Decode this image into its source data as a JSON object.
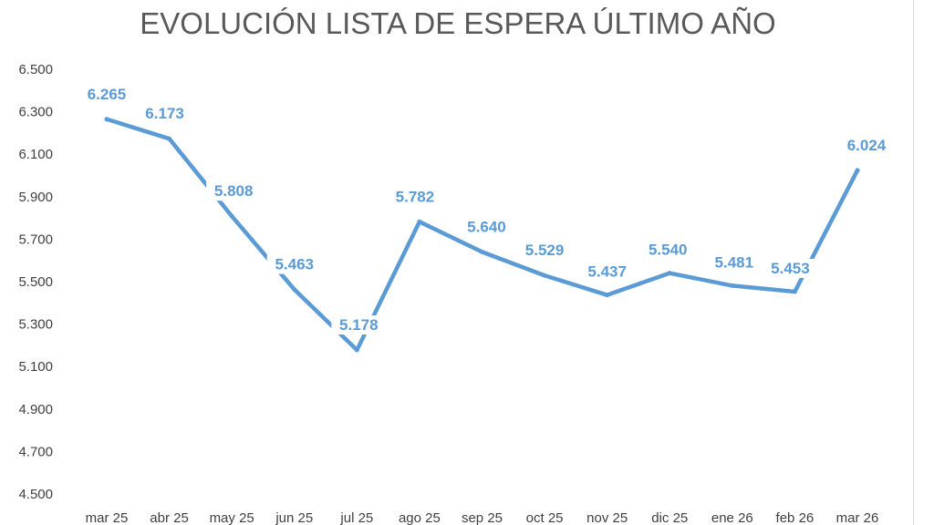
{
  "chart_data": {
    "type": "line",
    "title": "EVOLUCIÓN LISTA DE ESPERA ÚLTIMO AÑO",
    "xlabel": "",
    "ylabel": "",
    "categories": [
      "mar 25",
      "abr 25",
      "may 25",
      "jun 25",
      "jul 25",
      "ago 25",
      "sep 25",
      "oct 25",
      "nov 25",
      "dic 25",
      "ene 26",
      "feb 26",
      "mar 26"
    ],
    "series": [
      {
        "values": [
          6265,
          6173,
          5808,
          5463,
          5178,
          5782,
          5640,
          5529,
          5437,
          5540,
          5481,
          5453,
          6024
        ],
        "labels": [
          "6.265",
          "6.173",
          "5.808",
          "5.463",
          "5.178",
          "5.782",
          "5.640",
          "5.529",
          "5.437",
          "5.540",
          "5.481",
          "5.453",
          "6.024"
        ],
        "color": "#5b9bd5"
      }
    ],
    "ylim": [
      4500,
      6500
    ],
    "yticks": [
      4500,
      4700,
      4900,
      5100,
      5300,
      5500,
      5700,
      5900,
      6100,
      6300,
      6500
    ],
    "ytick_labels": [
      "4.500",
      "4.700",
      "4.900",
      "5.100",
      "5.300",
      "5.500",
      "5.700",
      "5.900",
      "6.100",
      "6.300",
      "6.500"
    ],
    "grid": false,
    "legend": "none"
  }
}
